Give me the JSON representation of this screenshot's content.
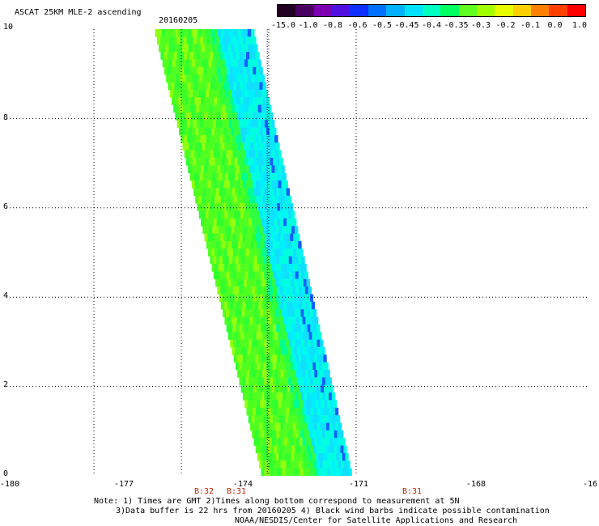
{
  "header": {
    "title": "ASCAT 25KM MLE-2 ascending",
    "date": "20160205"
  },
  "colorbar": {
    "labels": [
      "-15.0",
      "-1.0",
      "-0.8",
      "-0.6",
      "-0.5",
      "-0.45",
      "-0.4",
      "-0.35",
      "-0.3",
      "-0.2",
      "-0.1",
      "0.0",
      "1.0"
    ],
    "colors": [
      "#200020",
      "#4a0060",
      "#7a00b0",
      "#5010e0",
      "#1030ff",
      "#0070ff",
      "#00b0ff",
      "#00e0ff",
      "#00ffc0",
      "#00ff60",
      "#60ff20",
      "#a0ff00",
      "#e8ff00",
      "#ffd000",
      "#ff8000",
      "#ff4000",
      "#ff0000"
    ]
  },
  "map": {
    "x_ticks": [
      "-180",
      "-177",
      "-174",
      "-171",
      "-168",
      "-16"
    ],
    "y_ticks": [
      "0",
      "2",
      "4",
      "6",
      "8",
      "10"
    ],
    "time_marks": [
      "B:32",
      "B:31",
      "B:31"
    ]
  },
  "notes": {
    "line1": "Note: 1) Times are GMT 2)Times along bottom correspond to measurement at 5N",
    "line2": "3)Data buffer is 22 hrs from 20160205 4) Black wind barbs indicate possible contamination",
    "line3": "NOAA/NESDIS/Center for Satellite Applications and Research"
  }
}
